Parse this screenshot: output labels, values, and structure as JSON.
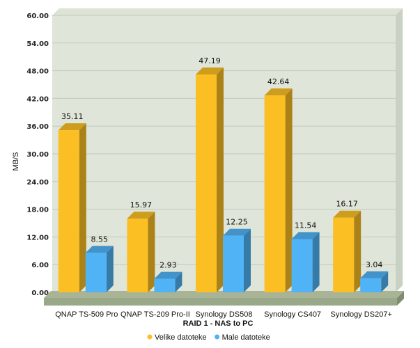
{
  "chart_data": {
    "type": "bar",
    "title": "",
    "xlabel": "RAID 1 - NAS to PC",
    "ylabel": "MB/S",
    "ylim": [
      0,
      60
    ],
    "yticks": [
      "0.00",
      "6.00",
      "12.00",
      "18.00",
      "24.00",
      "30.00",
      "36.00",
      "42.00",
      "48.00",
      "54.00",
      "60.00"
    ],
    "grid": true,
    "legend_position": "bottom-center",
    "categories": [
      "QNAP TS-509 Pro",
      "QNAP TS-209 Pro-II",
      "Synology DS508",
      "Synology CS407",
      "Synology DS207+"
    ],
    "series": [
      {
        "name": "Velike datoteke",
        "color": "#FBBF24",
        "values": [
          35.11,
          15.97,
          47.19,
          42.64,
          16.17
        ],
        "labels": [
          "35.11",
          "15.97",
          "47.19",
          "42.64",
          "16.17"
        ]
      },
      {
        "name": "Male datoteke",
        "color": "#4FB3F6",
        "values": [
          8.55,
          2.93,
          12.25,
          11.54,
          3.04
        ],
        "labels": [
          "8.55",
          "2.93",
          "12.25",
          "11.54",
          "3.04"
        ]
      }
    ]
  }
}
